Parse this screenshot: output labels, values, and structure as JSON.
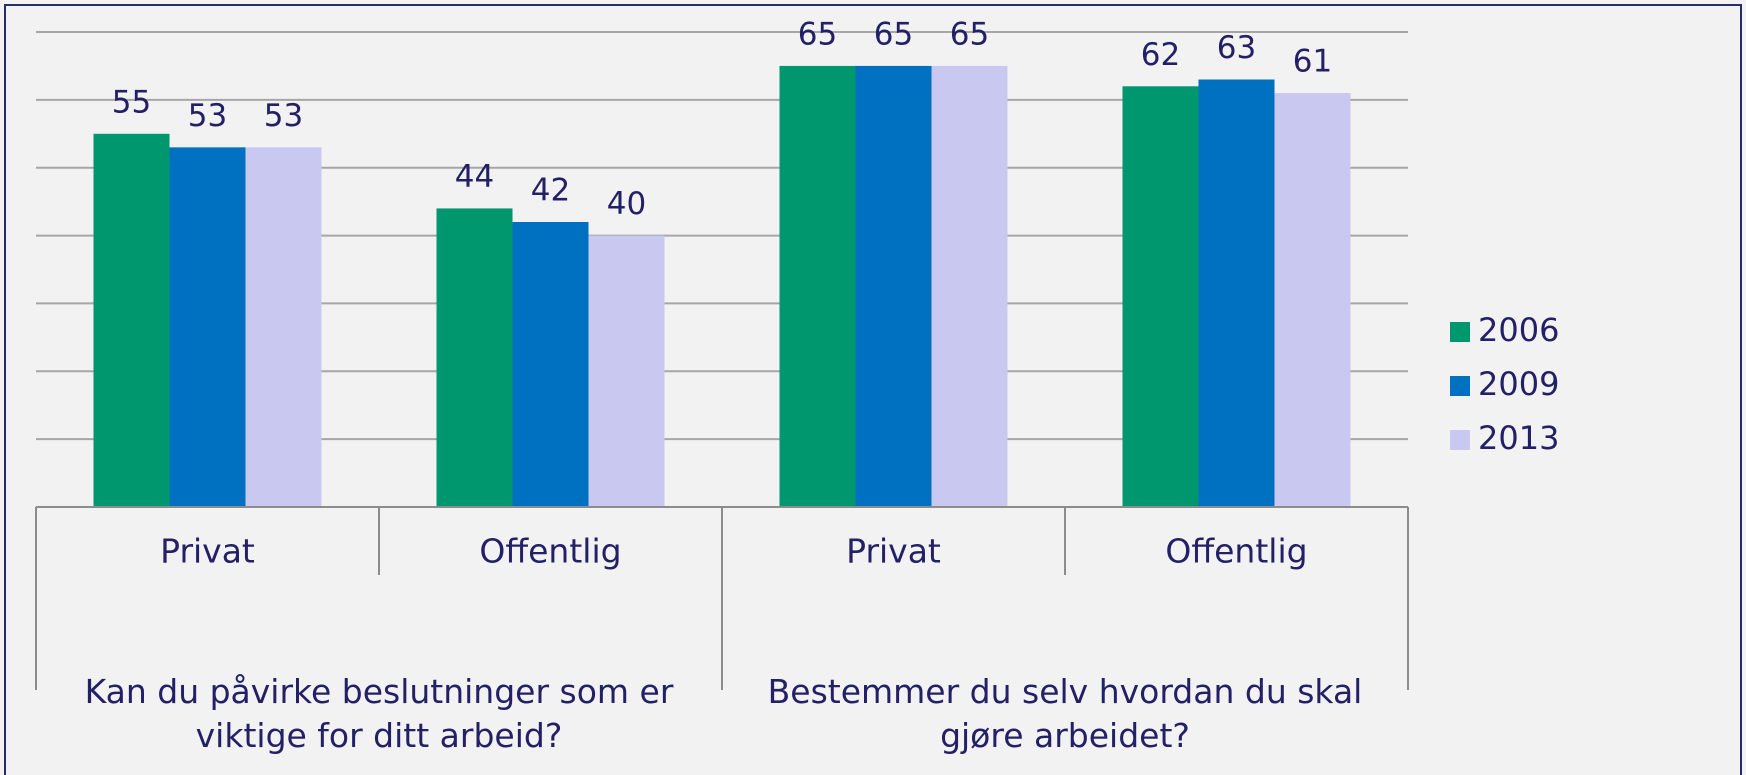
{
  "chart_data": {
    "type": "bar",
    "categories": [
      "Privat",
      "Offentlig",
      "Privat",
      "Offentlig"
    ],
    "category_groups": [
      "Kan du påvirke beslutninger som er viktige for ditt arbeid?",
      "Bestemmer du selv hvordan du skal gjøre arbeidet?"
    ],
    "series": [
      {
        "name": "2006",
        "color": "#00976f",
        "values": [
          55,
          44,
          65,
          62
        ]
      },
      {
        "name": "2009",
        "color": "#0070c0",
        "values": [
          53,
          42,
          65,
          63
        ]
      },
      {
        "name": "2013",
        "color": "#c9c8f0",
        "values": [
          53,
          40,
          65,
          61
        ]
      }
    ],
    "ylim": [
      0,
      70
    ],
    "yticks": [
      0,
      10,
      20,
      30,
      40,
      50,
      60,
      70
    ],
    "grid": true,
    "legend": "right"
  }
}
